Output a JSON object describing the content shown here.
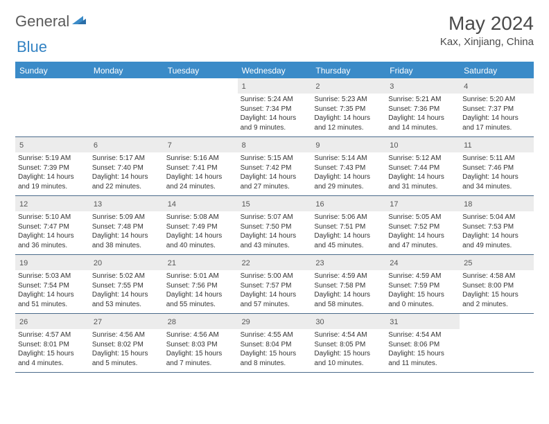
{
  "logo": {
    "general": "General",
    "blue": "Blue"
  },
  "title": "May 2024",
  "location": "Kax, Xinjiang, China",
  "colors": {
    "header_bg": "#3b8bc8",
    "header_text": "#ffffff",
    "daynum_bg": "#ececec",
    "border": "#4a6a8a",
    "text": "#333333",
    "logo_gray": "#5a5a5a",
    "logo_blue": "#3282c3"
  },
  "day_headers": [
    "Sunday",
    "Monday",
    "Tuesday",
    "Wednesday",
    "Thursday",
    "Friday",
    "Saturday"
  ],
  "weeks": [
    [
      {
        "n": "",
        "sr": "",
        "ss": "",
        "dl1": "",
        "dl2": ""
      },
      {
        "n": "",
        "sr": "",
        "ss": "",
        "dl1": "",
        "dl2": ""
      },
      {
        "n": "",
        "sr": "",
        "ss": "",
        "dl1": "",
        "dl2": ""
      },
      {
        "n": "1",
        "sr": "Sunrise: 5:24 AM",
        "ss": "Sunset: 7:34 PM",
        "dl1": "Daylight: 14 hours",
        "dl2": "and 9 minutes."
      },
      {
        "n": "2",
        "sr": "Sunrise: 5:23 AM",
        "ss": "Sunset: 7:35 PM",
        "dl1": "Daylight: 14 hours",
        "dl2": "and 12 minutes."
      },
      {
        "n": "3",
        "sr": "Sunrise: 5:21 AM",
        "ss": "Sunset: 7:36 PM",
        "dl1": "Daylight: 14 hours",
        "dl2": "and 14 minutes."
      },
      {
        "n": "4",
        "sr": "Sunrise: 5:20 AM",
        "ss": "Sunset: 7:37 PM",
        "dl1": "Daylight: 14 hours",
        "dl2": "and 17 minutes."
      }
    ],
    [
      {
        "n": "5",
        "sr": "Sunrise: 5:19 AM",
        "ss": "Sunset: 7:39 PM",
        "dl1": "Daylight: 14 hours",
        "dl2": "and 19 minutes."
      },
      {
        "n": "6",
        "sr": "Sunrise: 5:17 AM",
        "ss": "Sunset: 7:40 PM",
        "dl1": "Daylight: 14 hours",
        "dl2": "and 22 minutes."
      },
      {
        "n": "7",
        "sr": "Sunrise: 5:16 AM",
        "ss": "Sunset: 7:41 PM",
        "dl1": "Daylight: 14 hours",
        "dl2": "and 24 minutes."
      },
      {
        "n": "8",
        "sr": "Sunrise: 5:15 AM",
        "ss": "Sunset: 7:42 PM",
        "dl1": "Daylight: 14 hours",
        "dl2": "and 27 minutes."
      },
      {
        "n": "9",
        "sr": "Sunrise: 5:14 AM",
        "ss": "Sunset: 7:43 PM",
        "dl1": "Daylight: 14 hours",
        "dl2": "and 29 minutes."
      },
      {
        "n": "10",
        "sr": "Sunrise: 5:12 AM",
        "ss": "Sunset: 7:44 PM",
        "dl1": "Daylight: 14 hours",
        "dl2": "and 31 minutes."
      },
      {
        "n": "11",
        "sr": "Sunrise: 5:11 AM",
        "ss": "Sunset: 7:46 PM",
        "dl1": "Daylight: 14 hours",
        "dl2": "and 34 minutes."
      }
    ],
    [
      {
        "n": "12",
        "sr": "Sunrise: 5:10 AM",
        "ss": "Sunset: 7:47 PM",
        "dl1": "Daylight: 14 hours",
        "dl2": "and 36 minutes."
      },
      {
        "n": "13",
        "sr": "Sunrise: 5:09 AM",
        "ss": "Sunset: 7:48 PM",
        "dl1": "Daylight: 14 hours",
        "dl2": "and 38 minutes."
      },
      {
        "n": "14",
        "sr": "Sunrise: 5:08 AM",
        "ss": "Sunset: 7:49 PM",
        "dl1": "Daylight: 14 hours",
        "dl2": "and 40 minutes."
      },
      {
        "n": "15",
        "sr": "Sunrise: 5:07 AM",
        "ss": "Sunset: 7:50 PM",
        "dl1": "Daylight: 14 hours",
        "dl2": "and 43 minutes."
      },
      {
        "n": "16",
        "sr": "Sunrise: 5:06 AM",
        "ss": "Sunset: 7:51 PM",
        "dl1": "Daylight: 14 hours",
        "dl2": "and 45 minutes."
      },
      {
        "n": "17",
        "sr": "Sunrise: 5:05 AM",
        "ss": "Sunset: 7:52 PM",
        "dl1": "Daylight: 14 hours",
        "dl2": "and 47 minutes."
      },
      {
        "n": "18",
        "sr": "Sunrise: 5:04 AM",
        "ss": "Sunset: 7:53 PM",
        "dl1": "Daylight: 14 hours",
        "dl2": "and 49 minutes."
      }
    ],
    [
      {
        "n": "19",
        "sr": "Sunrise: 5:03 AM",
        "ss": "Sunset: 7:54 PM",
        "dl1": "Daylight: 14 hours",
        "dl2": "and 51 minutes."
      },
      {
        "n": "20",
        "sr": "Sunrise: 5:02 AM",
        "ss": "Sunset: 7:55 PM",
        "dl1": "Daylight: 14 hours",
        "dl2": "and 53 minutes."
      },
      {
        "n": "21",
        "sr": "Sunrise: 5:01 AM",
        "ss": "Sunset: 7:56 PM",
        "dl1": "Daylight: 14 hours",
        "dl2": "and 55 minutes."
      },
      {
        "n": "22",
        "sr": "Sunrise: 5:00 AM",
        "ss": "Sunset: 7:57 PM",
        "dl1": "Daylight: 14 hours",
        "dl2": "and 57 minutes."
      },
      {
        "n": "23",
        "sr": "Sunrise: 4:59 AM",
        "ss": "Sunset: 7:58 PM",
        "dl1": "Daylight: 14 hours",
        "dl2": "and 58 minutes."
      },
      {
        "n": "24",
        "sr": "Sunrise: 4:59 AM",
        "ss": "Sunset: 7:59 PM",
        "dl1": "Daylight: 15 hours",
        "dl2": "and 0 minutes."
      },
      {
        "n": "25",
        "sr": "Sunrise: 4:58 AM",
        "ss": "Sunset: 8:00 PM",
        "dl1": "Daylight: 15 hours",
        "dl2": "and 2 minutes."
      }
    ],
    [
      {
        "n": "26",
        "sr": "Sunrise: 4:57 AM",
        "ss": "Sunset: 8:01 PM",
        "dl1": "Daylight: 15 hours",
        "dl2": "and 4 minutes."
      },
      {
        "n": "27",
        "sr": "Sunrise: 4:56 AM",
        "ss": "Sunset: 8:02 PM",
        "dl1": "Daylight: 15 hours",
        "dl2": "and 5 minutes."
      },
      {
        "n": "28",
        "sr": "Sunrise: 4:56 AM",
        "ss": "Sunset: 8:03 PM",
        "dl1": "Daylight: 15 hours",
        "dl2": "and 7 minutes."
      },
      {
        "n": "29",
        "sr": "Sunrise: 4:55 AM",
        "ss": "Sunset: 8:04 PM",
        "dl1": "Daylight: 15 hours",
        "dl2": "and 8 minutes."
      },
      {
        "n": "30",
        "sr": "Sunrise: 4:54 AM",
        "ss": "Sunset: 8:05 PM",
        "dl1": "Daylight: 15 hours",
        "dl2": "and 10 minutes."
      },
      {
        "n": "31",
        "sr": "Sunrise: 4:54 AM",
        "ss": "Sunset: 8:06 PM",
        "dl1": "Daylight: 15 hours",
        "dl2": "and 11 minutes."
      },
      {
        "n": "",
        "sr": "",
        "ss": "",
        "dl1": "",
        "dl2": ""
      }
    ]
  ]
}
